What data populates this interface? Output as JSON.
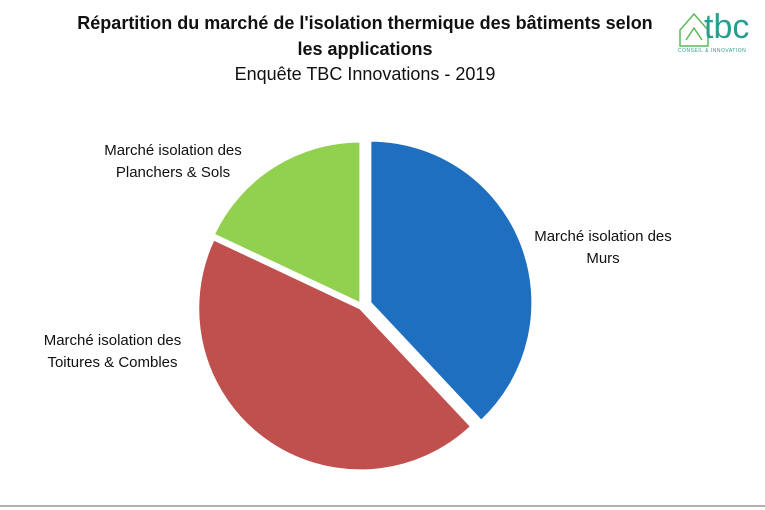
{
  "chart_data": {
    "type": "pie",
    "title": "Répartition du marché de l'isolation thermique des bâtiments selon les applications",
    "subtitle": "Enquête TBC Innovations - 2019",
    "categories": [
      "Marché isolation des Murs",
      "Marché isolation des Toitures & Combles",
      "Marché isolation des Planchers & Sols"
    ],
    "values": [
      38,
      44,
      18
    ],
    "colors": [
      "#1f6fc0",
      "#c0504d",
      "#92d050"
    ]
  },
  "logo": {
    "name": "tbc",
    "tagline": "CONSEIL & INNOVATION"
  }
}
